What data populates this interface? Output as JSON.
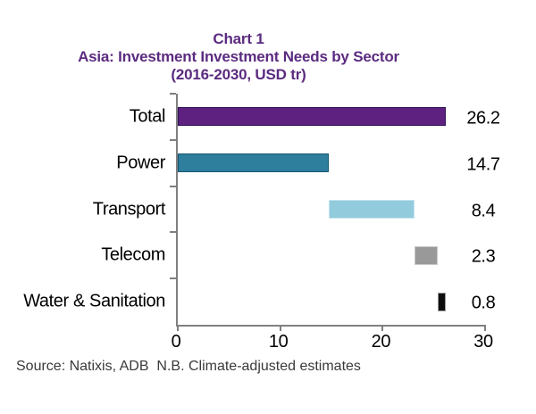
{
  "colors": {
    "title_purple": "#5B2B80",
    "axis_gray": "#808080",
    "text_black": "#000000",
    "source_gray": "#3A3A3A"
  },
  "chart_data": {
    "type": "bar",
    "orientation": "horizontal",
    "style": "waterfall",
    "title": "Chart 1",
    "subtitle": "Asia: Investment Investment Needs by Sector",
    "unit_note": "(2016-2030, USD tr)",
    "categories": [
      "Total",
      "Power",
      "Transport",
      "Telecom",
      "Water & Sanitation"
    ],
    "values": [
      26.2,
      14.7,
      8.4,
      2.3,
      0.8
    ],
    "bar_starts": [
      0,
      0,
      14.7,
      23.1,
      25.4
    ],
    "value_labels": [
      "26.2",
      "14.7",
      "8.4",
      "2.3",
      "0.8"
    ],
    "bar_colors": [
      "#5E2180",
      "#2E7E9D",
      "#92CBDC",
      "#999999",
      "#0D0D0D"
    ],
    "bar_border_colors": [
      "#2F1556",
      "#165672",
      "#C3E4EE",
      "#C9C9C9",
      "#9A9A9A"
    ],
    "xlim": [
      0,
      30
    ],
    "x_ticks": [
      "0",
      "10",
      "20",
      "30"
    ],
    "grid": false,
    "legend": false,
    "value_label_position": "right-column",
    "source_note": "Source: Natixis, ADB  N.B. Climate-adjusted estimates"
  }
}
